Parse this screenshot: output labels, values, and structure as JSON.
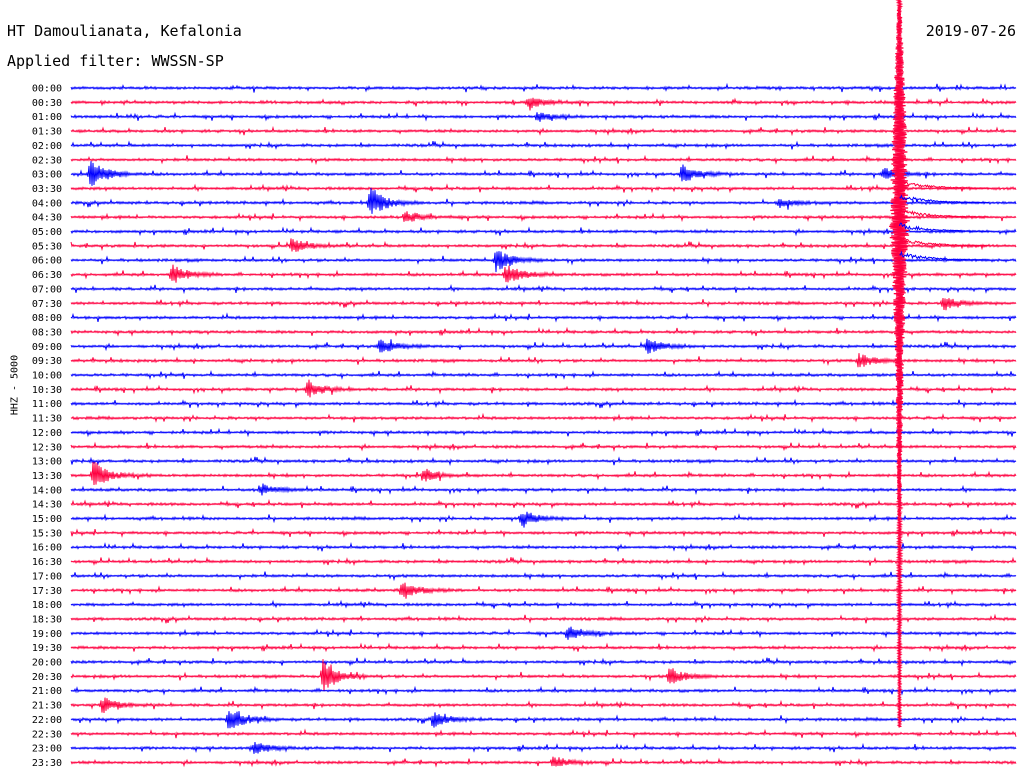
{
  "header": {
    "station": "HT Damoulianata, Kefalonia",
    "filter": "Applied filter: WWSSN-SP",
    "date": "2019-07-26"
  },
  "chart_data": {
    "type": "line",
    "title": "HT Damoulianata, Kefalonia",
    "subtitle": "Applied filter: WWSSN-SP",
    "date": "2019-07-26",
    "ylabel": "HHZ - 5000",
    "row_labels": [
      "00:00",
      "00:30",
      "01:00",
      "01:30",
      "02:00",
      "02:30",
      "03:00",
      "03:30",
      "04:00",
      "04:30",
      "05:00",
      "05:30",
      "06:00",
      "06:30",
      "07:00",
      "07:30",
      "08:00",
      "08:30",
      "09:00",
      "09:30",
      "10:00",
      "10:30",
      "11:00",
      "11:30",
      "12:00",
      "12:30",
      "13:00",
      "13:30",
      "14:00",
      "14:30",
      "15:00",
      "15:30",
      "16:00",
      "16:30",
      "17:00",
      "17:30",
      "18:00",
      "18:30",
      "19:00",
      "19:30",
      "20:00",
      "20:30",
      "21:00",
      "21:30",
      "22:00",
      "22:30",
      "23:00",
      "23:30"
    ],
    "x_range_minutes": [
      0,
      30
    ],
    "colors": {
      "even": "#0000ff",
      "odd": "#ff0040",
      "background": "#ffffff"
    },
    "events": [
      {
        "row": 1,
        "minute": 14.5,
        "amp": 0.5
      },
      {
        "row": 2,
        "minute": 14.8,
        "amp": 0.3
      },
      {
        "row": 6,
        "minute": 0.6,
        "amp": 1.0
      },
      {
        "row": 6,
        "minute": 19.4,
        "amp": 0.6
      },
      {
        "row": 6,
        "minute": 25.8,
        "amp": 0.4
      },
      {
        "row": 8,
        "minute": 9.5,
        "amp": 1.0
      },
      {
        "row": 8,
        "minute": 22.5,
        "amp": 0.3
      },
      {
        "row": 9,
        "minute": 10.6,
        "amp": 0.4
      },
      {
        "row": 11,
        "minute": 7.0,
        "amp": 0.5
      },
      {
        "row": 12,
        "minute": 13.5,
        "amp": 0.8
      },
      {
        "row": 13,
        "minute": 3.2,
        "amp": 0.6
      },
      {
        "row": 13,
        "minute": 13.8,
        "amp": 0.7
      },
      {
        "row": 15,
        "minute": 27.7,
        "amp": 0.5
      },
      {
        "row": 18,
        "minute": 9.8,
        "amp": 0.5
      },
      {
        "row": 18,
        "minute": 18.3,
        "amp": 0.5
      },
      {
        "row": 19,
        "minute": 25.0,
        "amp": 0.5
      },
      {
        "row": 21,
        "minute": 7.5,
        "amp": 0.6
      },
      {
        "row": 27,
        "minute": 0.7,
        "amp": 1.0
      },
      {
        "row": 27,
        "minute": 11.2,
        "amp": 0.4
      },
      {
        "row": 28,
        "minute": 6.0,
        "amp": 0.4
      },
      {
        "row": 30,
        "minute": 14.3,
        "amp": 0.6
      },
      {
        "row": 35,
        "minute": 10.5,
        "amp": 0.6
      },
      {
        "row": 38,
        "minute": 15.8,
        "amp": 0.5
      },
      {
        "row": 41,
        "minute": 8.0,
        "amp": 1.0
      },
      {
        "row": 41,
        "minute": 19.0,
        "amp": 0.6
      },
      {
        "row": 43,
        "minute": 1.0,
        "amp": 0.5
      },
      {
        "row": 44,
        "minute": 5.0,
        "amp": 0.8
      },
      {
        "row": 44,
        "minute": 11.5,
        "amp": 0.5
      },
      {
        "row": 46,
        "minute": 5.8,
        "amp": 0.4
      },
      {
        "row": 47,
        "minute": 15.3,
        "amp": 0.4
      }
    ],
    "main_event": {
      "start_row": 0,
      "end_row": 44,
      "minute": 26.3,
      "peak_row": 9
    }
  }
}
